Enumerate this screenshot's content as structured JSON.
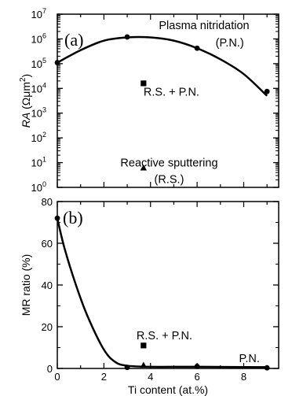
{
  "chart_data": [
    {
      "type": "line",
      "panel_label": "(a)",
      "ylabel_italic": "RA",
      "ylabel_rest": " (Ωμm",
      "ylabel_sup": "2",
      "ylabel_close": ")",
      "yscale": "log",
      "ylim": [
        1,
        10000000
      ],
      "xlim": [
        0,
        9.5
      ],
      "y_tick_mantissa": "10",
      "y_ticks": [
        {
          "value": 1,
          "exp": "0"
        },
        {
          "value": 10,
          "exp": "1"
        },
        {
          "value": 100,
          "exp": "2"
        },
        {
          "value": 1000,
          "exp": "3"
        },
        {
          "value": 10000,
          "exp": "4"
        },
        {
          "value": 100000,
          "exp": "5"
        },
        {
          "value": 1000000,
          "exp": "6"
        },
        {
          "value": 10000000,
          "exp": "7"
        }
      ],
      "series": [
        {
          "name": "Plasma nitridation (P.N.)",
          "marker": "circle",
          "x": [
            0,
            3,
            6,
            9
          ],
          "y": [
            110000,
            1200000,
            420000,
            7500
          ]
        },
        {
          "name": "R.S. + P.N.",
          "marker": "square",
          "x": [
            3.7
          ],
          "y": [
            16000
          ]
        },
        {
          "name": "Reactive sputtering (R.S.)",
          "marker": "triangle",
          "x": [
            3.7
          ],
          "y": [
            6
          ]
        }
      ],
      "fit_curve": {
        "x": [
          0,
          1,
          2,
          3,
          4,
          5,
          6,
          7,
          8,
          9
        ],
        "y": [
          110000,
          350000,
          850000,
          1150000,
          1150000,
          850000,
          420000,
          150000,
          38000,
          5000
        ]
      },
      "annotations": [
        {
          "text": "Plasma nitridation",
          "x": 6.3,
          "y": 2500000
        },
        {
          "text": "(P.N.)",
          "x": 7.4,
          "y": 500000
        },
        {
          "text": "R.S. + P.N.",
          "x": 4.9,
          "y": 5000
        },
        {
          "text": "Reactive sputtering",
          "x": 4.8,
          "y": 7
        },
        {
          "text": "(R.S.)",
          "x": 4.8,
          "y": 1.5
        }
      ]
    },
    {
      "type": "line",
      "panel_label": "(b)",
      "xlabel": "Ti content (at.%)",
      "ylabel": "MR ratio (%)",
      "xlim": [
        0,
        9.5
      ],
      "ylim": [
        0,
        80
      ],
      "x_ticks": [
        0,
        2,
        4,
        6,
        8
      ],
      "y_ticks": [
        0,
        20,
        40,
        60,
        80
      ],
      "series": [
        {
          "name": "Plasma nitridation (P.N.)",
          "marker": "circle",
          "x": [
            0,
            3,
            6,
            9
          ],
          "y": [
            72,
            0.5,
            1,
            0.3
          ]
        },
        {
          "name": "R.S. + P.N.",
          "marker": "square",
          "x": [
            3.7
          ],
          "y": [
            11
          ]
        },
        {
          "name": "Reactive sputtering (R.S.)",
          "marker": "triangle",
          "x": [
            3.7
          ],
          "y": [
            1.5
          ]
        }
      ],
      "fit_curve": {
        "x": [
          0,
          0.3,
          0.8,
          1.3,
          2.0,
          2.5,
          3.0,
          4.0,
          6.0,
          9.0
        ],
        "y": [
          72,
          58,
          40,
          25,
          9,
          3,
          1.3,
          0.8,
          0.8,
          0.6
        ]
      },
      "annotations": [
        {
          "text": "R.S. + P.N.",
          "x": 3.4,
          "y": 14
        },
        {
          "text": "P.N.",
          "x": 7.8,
          "y": 3
        }
      ]
    }
  ]
}
